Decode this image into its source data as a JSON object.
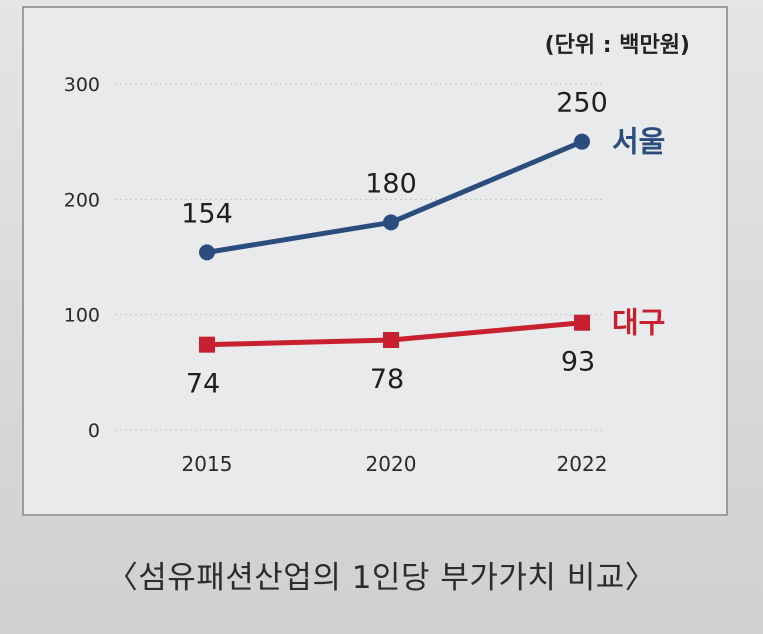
{
  "caption": "〈섬유패션산업의 1인당 부가가치 비교〉",
  "chart_data": {
    "type": "line",
    "title": "",
    "unit_label": "(단위 : 백만원)",
    "x": [
      "2015",
      "2020",
      "2022"
    ],
    "ylim": [
      0,
      300
    ],
    "yticks": [
      0,
      100,
      200,
      300
    ],
    "grid": true,
    "series": [
      {
        "name": "서울",
        "values": [
          154,
          180,
          250
        ],
        "data_labels": [
          "154",
          "180",
          "250"
        ],
        "color": "#2b4d7e",
        "marker": "circle"
      },
      {
        "name": "대구",
        "values": [
          74,
          78,
          93
        ],
        "data_labels": [
          "74",
          "78",
          "93"
        ],
        "color": "#c8202f",
        "marker": "square"
      }
    ]
  }
}
